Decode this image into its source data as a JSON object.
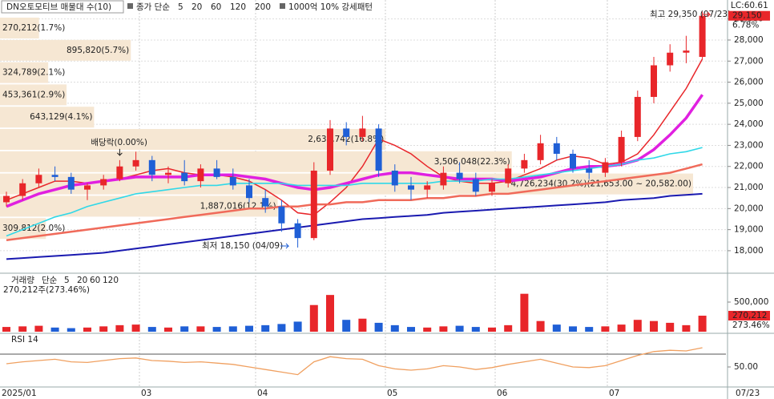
{
  "chart_data": [
    {
      "type": "candlestick",
      "title": "DN오토모티브 매물대 수(10)",
      "legend_prefix": "종가 단순",
      "pattern_label": "1000억 10% 강세패턴",
      "lc_label": "LC:60.61",
      "last_price_label": "29,150",
      "change_label": "6.78%",
      "up_color": "#e8262a",
      "down_color": "#1f5fd6",
      "ylim": [
        16970,
        29900
      ],
      "yticks": [
        {
          "value": 18000,
          "label": "18,000"
        },
        {
          "value": 19000,
          "label": "19,000"
        },
        {
          "value": 20000,
          "label": "20,000"
        },
        {
          "value": 21000,
          "label": "21,000"
        },
        {
          "value": 22000,
          "label": "22,000"
        },
        {
          "value": 23000,
          "label": "23,000"
        },
        {
          "value": 24000,
          "label": "24,000"
        },
        {
          "value": 25000,
          "label": "25,000"
        },
        {
          "value": 26000,
          "label": "26,000"
        },
        {
          "value": 27000,
          "label": "27,000"
        },
        {
          "value": 28000,
          "label": "28,000"
        },
        {
          "value": 29000,
          "label": "29,000"
        }
      ],
      "open": [
        20300,
        20600,
        21200,
        21600,
        21500,
        20900,
        21100,
        21400,
        22000,
        22300,
        21600,
        21700,
        21300,
        21900,
        21500,
        21100,
        20500,
        20100,
        19300,
        18600,
        21800,
        23800,
        23400,
        23800,
        21800,
        21100,
        20900,
        21100,
        21700,
        21400,
        20800,
        21200,
        21900,
        22300,
        23100,
        22600,
        21900,
        21700,
        22200,
        23400,
        25300,
        26800,
        27400,
        27200
      ],
      "high": [
        20800,
        21400,
        21900,
        22000,
        21700,
        21200,
        21600,
        22300,
        22700,
        22500,
        22000,
        22300,
        22100,
        22300,
        21900,
        21400,
        20900,
        20400,
        19500,
        22200,
        24200,
        24100,
        24400,
        24000,
        22100,
        21500,
        21300,
        22000,
        22200,
        21700,
        21400,
        22100,
        22600,
        23500,
        23400,
        22800,
        22300,
        22400,
        23700,
        25600,
        27200,
        27800,
        28200,
        29350
      ],
      "low": [
        20100,
        20400,
        21000,
        21300,
        20700,
        20400,
        20900,
        21300,
        21800,
        21300,
        21200,
        21100,
        21000,
        21400,
        20900,
        20300,
        19800,
        18900,
        18150,
        18500,
        21600,
        23000,
        23200,
        21500,
        20800,
        20400,
        20500,
        20900,
        21200,
        20600,
        20600,
        21000,
        21700,
        22100,
        22300,
        21700,
        21400,
        21500,
        22000,
        23200,
        25000,
        26500,
        26900,
        27100
      ],
      "close": [
        20600,
        21200,
        21600,
        21500,
        20900,
        21100,
        21400,
        22000,
        22300,
        21600,
        21700,
        21300,
        21900,
        21500,
        21100,
        20500,
        20100,
        19300,
        18600,
        21800,
        23800,
        23400,
        23800,
        21800,
        21100,
        20900,
        21100,
        21700,
        21400,
        20800,
        21200,
        21900,
        22300,
        23100,
        22600,
        21900,
        21700,
        22200,
        23400,
        25300,
        26800,
        27400,
        27500,
        29150
      ],
      "series": [
        {
          "name": "5",
          "color": "#e8262a",
          "values": [
            20400,
            20700,
            21000,
            21300,
            21300,
            21200,
            21300,
            21400,
            21600,
            21800,
            21900,
            21700,
            21600,
            21600,
            21500,
            21300,
            20900,
            20400,
            19800,
            19700,
            20300,
            21000,
            22000,
            23300,
            23000,
            22600,
            22000,
            21500,
            21300,
            21200,
            21200,
            21300,
            21600,
            21900,
            22300,
            22500,
            22400,
            22100,
            22200,
            22600,
            23500,
            24600,
            25700,
            27100
          ]
        },
        {
          "name": "20",
          "color": "#e020e0",
          "values": [
            20100,
            20400,
            20700,
            20900,
            21100,
            21200,
            21300,
            21400,
            21500,
            21500,
            21500,
            21500,
            21600,
            21600,
            21600,
            21500,
            21400,
            21200,
            21000,
            20900,
            21000,
            21200,
            21400,
            21600,
            21700,
            21700,
            21600,
            21500,
            21400,
            21400,
            21400,
            21300,
            21400,
            21500,
            21700,
            21900,
            22000,
            22000,
            22100,
            22300,
            22800,
            23500,
            24300,
            25400
          ]
        },
        {
          "name": "60",
          "color": "#30d8e8",
          "values": [
            18700,
            19000,
            19300,
            19600,
            19800,
            20100,
            20300,
            20500,
            20700,
            20800,
            20900,
            21000,
            21100,
            21100,
            21200,
            21200,
            21200,
            21200,
            21100,
            21100,
            21100,
            21100,
            21200,
            21200,
            21200,
            21200,
            21200,
            21300,
            21300,
            21300,
            21400,
            21400,
            21500,
            21600,
            21700,
            21800,
            21900,
            22000,
            22100,
            22300,
            22400,
            22600,
            22700,
            22900
          ]
        },
        {
          "name": "120",
          "color": "#f06a5a",
          "values": [
            18500,
            18600,
            18700,
            18800,
            18900,
            19000,
            19100,
            19200,
            19300,
            19400,
            19500,
            19600,
            19700,
            19800,
            19900,
            20000,
            20000,
            20100,
            20100,
            20200,
            20200,
            20300,
            20300,
            20400,
            20400,
            20400,
            20500,
            20500,
            20600,
            20600,
            20700,
            20700,
            20800,
            20900,
            21000,
            21100,
            21200,
            21300,
            21400,
            21500,
            21600,
            21700,
            21900,
            22100
          ]
        },
        {
          "name": "200",
          "color": "#1a1ab0",
          "values": [
            17600,
            17650,
            17700,
            17750,
            17800,
            17850,
            17900,
            18000,
            18100,
            18200,
            18300,
            18400,
            18500,
            18600,
            18700,
            18800,
            18900,
            19000,
            19100,
            19200,
            19300,
            19400,
            19500,
            19550,
            19600,
            19650,
            19700,
            19800,
            19850,
            19900,
            19950,
            20000,
            20050,
            20100,
            20150,
            20200,
            20250,
            20300,
            20400,
            20450,
            20500,
            20600,
            20650,
            20700
          ]
        }
      ],
      "profile_color": "#f6e7d3",
      "profile": [
        {
          "label": "270,212(1.7%)",
          "pct": 1.7
        },
        {
          "label": "895,820(5.7%)",
          "pct": 5.7
        },
        {
          "label": "324,789(2.1%)",
          "pct": 2.1
        },
        {
          "label": "453,361(2.9%)",
          "pct": 2.9
        },
        {
          "label": "643,129(4.1%)",
          "pct": 4.1
        },
        {
          "label": "2,632,742(16.8%)",
          "pct": 16.8
        },
        {
          "label": "3,506,048(22.3%)",
          "pct": 22.3
        },
        {
          "label": "4,726,234(30.2%)(21,653.00 ~ 20,582.00)",
          "pct": 30.2
        },
        {
          "label": "1,887,016(12.1%)",
          "pct": 12.1
        },
        {
          "label": "309,812(2.0%)",
          "pct": 2.0
        }
      ],
      "annotations": [
        "배당락(0.00%)",
        "최고 29,350 (07/23)",
        "최저 18,150 (04/09)"
      ],
      "x_labels": [
        "2025/01",
        "03",
        "04",
        "05",
        "06",
        "07"
      ],
      "x_end_label": "07/23"
    },
    {
      "type": "bar",
      "title": "거래량",
      "legend_prefix": "단순",
      "legend": [
        "5",
        "20",
        "60",
        "120"
      ],
      "legend_colors": [
        "#e020e0",
        "#e8c020",
        "#30a030",
        "#888"
      ],
      "info_label": "270,212주(273.46%)",
      "last_label": "270,212",
      "pct_label": "273.46%",
      "ylim": [
        0,
        960000
      ],
      "yticks": [
        {
          "value": 500000,
          "label": "500,000"
        }
      ],
      "values": [
        80000,
        90000,
        100000,
        70000,
        60000,
        70000,
        90000,
        110000,
        120000,
        80000,
        70000,
        90000,
        90000,
        80000,
        90000,
        100000,
        110000,
        130000,
        170000,
        450000,
        620000,
        200000,
        220000,
        150000,
        110000,
        80000,
        70000,
        90000,
        100000,
        80000,
        70000,
        110000,
        640000,
        180000,
        120000,
        90000,
        80000,
        90000,
        120000,
        200000,
        180000,
        150000,
        110000,
        270212
      ]
    },
    {
      "type": "line",
      "title": "RSI 14",
      "color": "#f0a060",
      "ylim": [
        20,
        100
      ],
      "ref_line": 70,
      "yticks": [
        {
          "value": 50,
          "label": "50.00"
        }
      ],
      "values": [
        55,
        58,
        60,
        62,
        58,
        57,
        60,
        63,
        64,
        60,
        59,
        57,
        58,
        56,
        54,
        50,
        46,
        42,
        38,
        58,
        66,
        63,
        62,
        52,
        47,
        45,
        47,
        52,
        50,
        46,
        49,
        54,
        58,
        62,
        56,
        50,
        49,
        52,
        60,
        68,
        74,
        76,
        75,
        80
      ]
    }
  ]
}
